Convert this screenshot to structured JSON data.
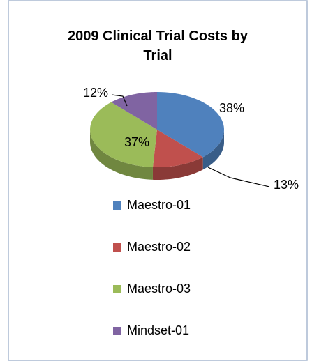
{
  "chart_data": {
    "type": "pie",
    "title": "2009 Clinical Trial Costs by Trial",
    "categories": [
      "Maestro-01",
      "Maestro-02",
      "Maestro-03",
      "Mindset-01"
    ],
    "values": [
      38,
      13,
      37,
      12
    ],
    "value_labels": [
      "38%",
      "13%",
      "37%",
      "12%"
    ],
    "colors": [
      "#4f81bd",
      "#c0504d",
      "#9bbb59",
      "#8064a2"
    ],
    "legend": "bottom"
  }
}
